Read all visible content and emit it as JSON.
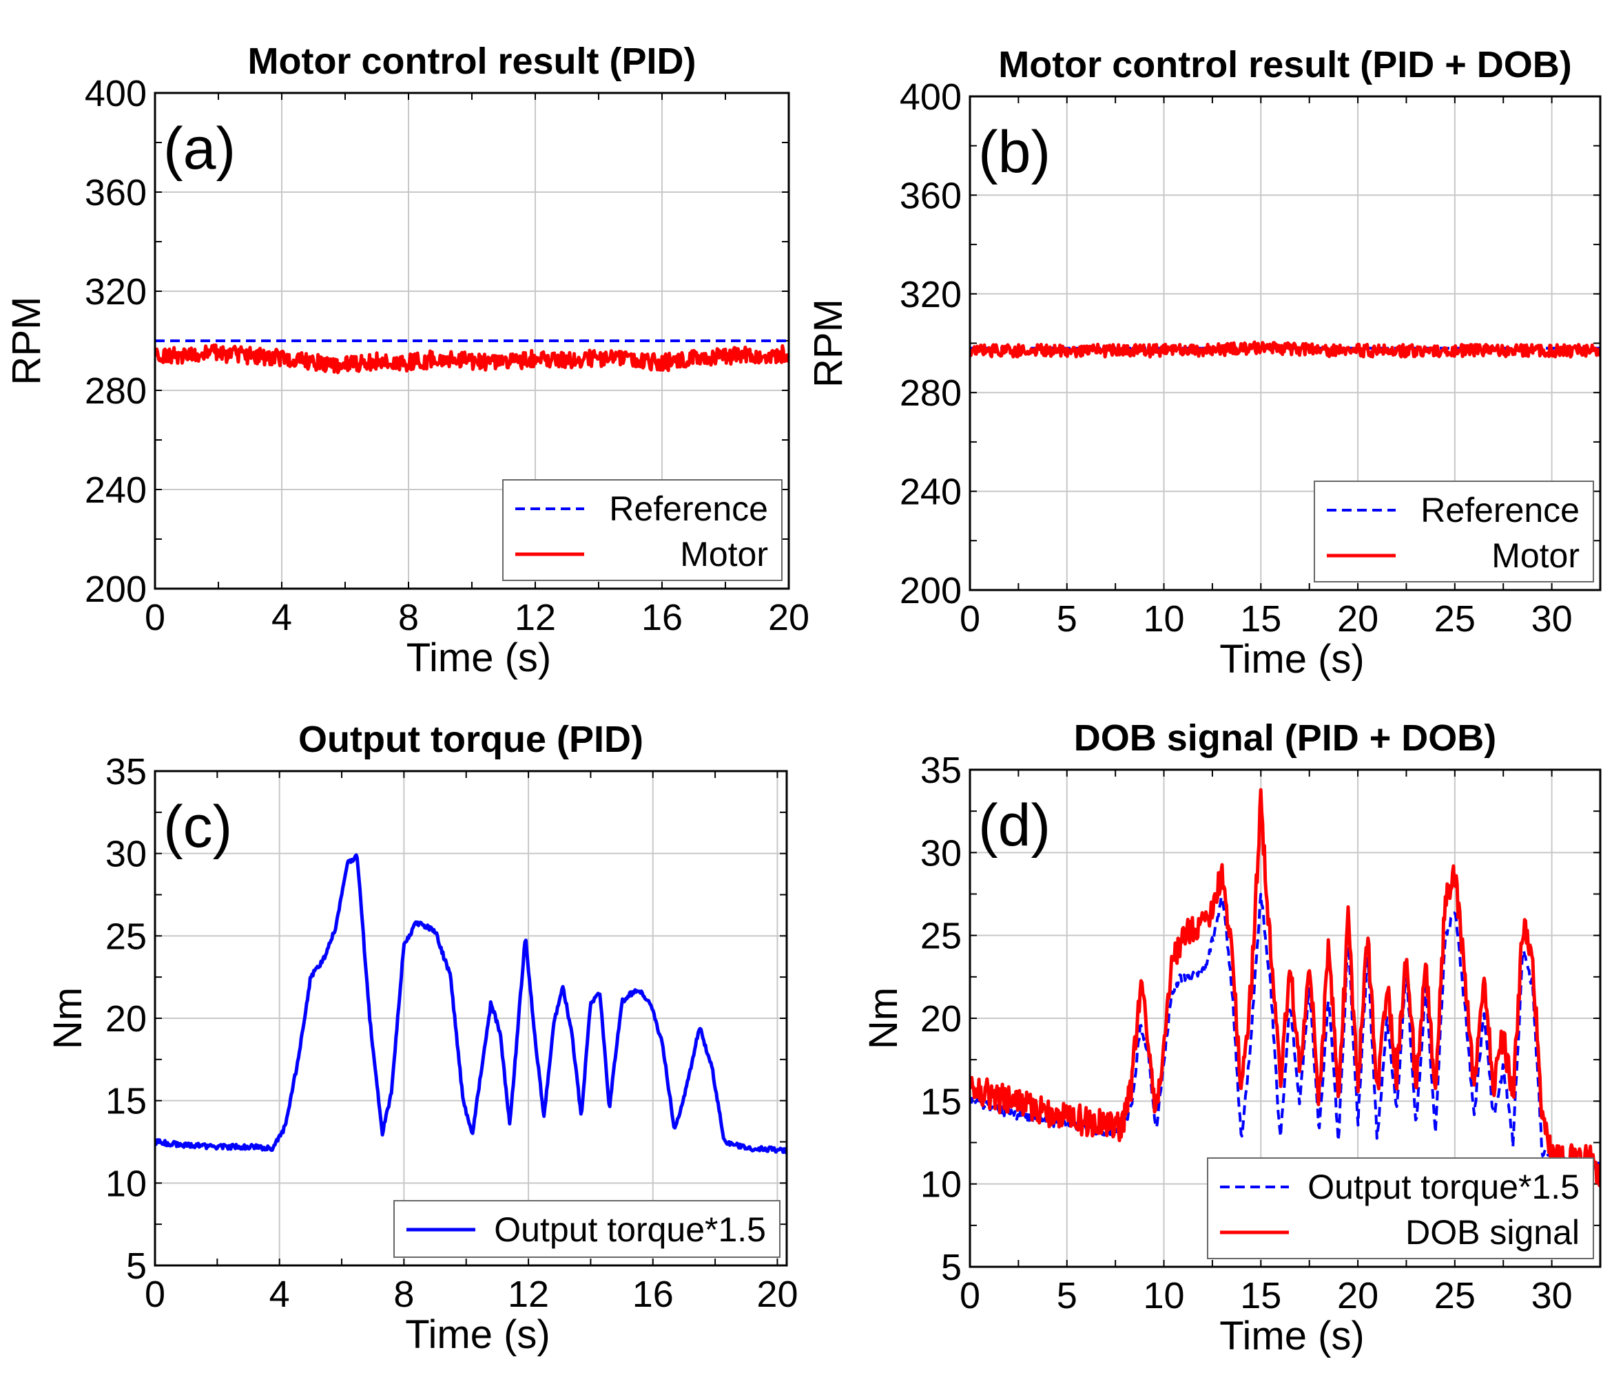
{
  "chart_data": [
    {
      "type": "line",
      "panel_label": "(a)",
      "title": "Motor control result (PID)",
      "xlabel": "Time (s)",
      "ylabel": "RPM",
      "xlim": [
        0,
        20
      ],
      "ylim": [
        200,
        400
      ],
      "xticks": [
        0,
        4,
        8,
        12,
        16,
        20
      ],
      "yticks": [
        200,
        240,
        280,
        320,
        360,
        400
      ],
      "grid": true,
      "legend": "bottom-right",
      "series": [
        {
          "name": "Reference",
          "style": "dashed",
          "color": "#0000ff",
          "x": [
            0,
            20
          ],
          "y": [
            300,
            300
          ]
        },
        {
          "name": "Motor",
          "style": "solid",
          "color": "#ff0000",
          "x": [
            0,
            1,
            2,
            3,
            4,
            5,
            6,
            7,
            8,
            9,
            10,
            11,
            12,
            13,
            14,
            15,
            16,
            17,
            18,
            19,
            20
          ],
          "y": [
            295,
            294,
            295,
            294,
            293,
            291,
            290,
            292,
            291,
            293,
            292,
            291,
            293,
            292,
            293,
            292,
            291,
            293,
            294,
            294,
            295
          ],
          "noise": 3.5
        }
      ]
    },
    {
      "type": "line",
      "panel_label": "(b)",
      "title": "Motor control result (PID + DOB)",
      "xlabel": "Time (s)",
      "ylabel": "RPM",
      "xlim": [
        0,
        32.5
      ],
      "ylim": [
        200,
        400
      ],
      "xticks": [
        0,
        5,
        10,
        15,
        20,
        25,
        30
      ],
      "yticks": [
        200,
        240,
        280,
        320,
        360,
        400
      ],
      "grid": true,
      "legend": "bottom-right",
      "series": [
        {
          "name": "Reference",
          "style": "dashed",
          "color": "#0000ff",
          "x": [
            0,
            32.5
          ],
          "y": [
            298,
            298
          ]
        },
        {
          "name": "Motor",
          "style": "solid",
          "color": "#ff0000",
          "x": [
            0,
            2,
            4,
            6,
            8,
            10,
            12,
            14,
            16,
            18,
            20,
            22,
            24,
            26,
            28,
            30,
            32.5
          ],
          "y": [
            297,
            297,
            297,
            297,
            297,
            297,
            297,
            298,
            298,
            297,
            297,
            297,
            297,
            297,
            297,
            297,
            297
          ],
          "noise": 2.5
        }
      ]
    },
    {
      "type": "line",
      "panel_label": "(c)",
      "title": "Output torque (PID)",
      "xlabel": "Time (s)",
      "ylabel": "Nm",
      "xlim": [
        0,
        20.3
      ],
      "ylim": [
        5,
        35
      ],
      "xticks": [
        0,
        4,
        8,
        12,
        16,
        20
      ],
      "yticks": [
        5,
        10,
        15,
        20,
        25,
        30,
        35
      ],
      "grid": true,
      "legend": "bottom-right",
      "series": [
        {
          "name": "Output torque*1.5",
          "style": "solid",
          "color": "#0000ff",
          "x": [
            0,
            1,
            2,
            3,
            3.8,
            4.2,
            4.6,
            5.0,
            5.4,
            5.8,
            6.2,
            6.5,
            6.9,
            7.3,
            7.6,
            8.0,
            8.4,
            9.0,
            9.5,
            9.9,
            10.2,
            10.5,
            10.8,
            11.1,
            11.4,
            11.6,
            11.9,
            12.2,
            12.5,
            12.8,
            13.1,
            13.4,
            13.7,
            14.0,
            14.3,
            14.6,
            15.0,
            15.5,
            15.9,
            16.3,
            16.7,
            17.1,
            17.5,
            17.9,
            18.3,
            19.0,
            20.3
          ],
          "y": [
            12.5,
            12.3,
            12.2,
            12.2,
            12.1,
            13.5,
            17.5,
            22.5,
            23.5,
            25.5,
            29.5,
            29.8,
            20.0,
            13.0,
            15.5,
            24.5,
            25.8,
            25.3,
            22.5,
            15.0,
            13.0,
            17.0,
            21.0,
            19.0,
            13.5,
            18.0,
            25.0,
            19.0,
            14.0,
            19.5,
            22.0,
            19.0,
            14.0,
            21.0,
            21.5,
            14.5,
            21.0,
            21.8,
            21.0,
            18.5,
            13.2,
            16.0,
            19.5,
            17.0,
            12.5,
            12.1,
            12.0
          ],
          "noise": 0.15
        }
      ]
    },
    {
      "type": "line",
      "panel_label": "(d)",
      "title": "DOB signal (PID + DOB)",
      "xlabel": "Time (s)",
      "ylabel": "Nm",
      "xlim": [
        0,
        32.5
      ],
      "ylim": [
        5,
        35
      ],
      "xticks": [
        0,
        5,
        10,
        15,
        20,
        25,
        30
      ],
      "yticks": [
        5,
        10,
        15,
        20,
        25,
        30,
        35
      ],
      "grid": true,
      "legend": "bottom-right",
      "series": [
        {
          "name": "Output torque*1.5",
          "style": "dashed",
          "color": "#0000ff",
          "x": [
            0,
            2,
            4,
            6,
            7.8,
            8.3,
            8.8,
            9.2,
            9.6,
            10.0,
            10.4,
            10.8,
            11.5,
            12.2,
            13.0,
            13.5,
            14.0,
            14.5,
            15.0,
            15.5,
            16.0,
            16.5,
            17.0,
            17.5,
            18.0,
            18.5,
            19.0,
            19.5,
            20.0,
            20.5,
            21.0,
            21.5,
            22.0,
            22.5,
            23.0,
            23.5,
            24.0,
            24.5,
            25.0,
            25.5,
            26.0,
            26.5,
            27.0,
            27.5,
            28.0,
            28.5,
            29.0,
            29.5,
            30.0,
            31.0,
            32.5
          ],
          "y": [
            15,
            14.3,
            13.8,
            13.4,
            13.0,
            14.5,
            19.5,
            18.0,
            13.0,
            17.5,
            21.5,
            22.5,
            22.5,
            23.0,
            27.5,
            22.0,
            12.5,
            19.0,
            27.5,
            22.0,
            12.5,
            21.0,
            15.0,
            22.0,
            13.0,
            21.5,
            12.5,
            25.0,
            13.5,
            24.0,
            12.5,
            20.0,
            14.5,
            23.0,
            13.5,
            22.0,
            13.0,
            25.0,
            26.5,
            21.0,
            14.0,
            20.5,
            14.0,
            17.0,
            12.5,
            24.0,
            22.0,
            12.0,
            11.5,
            11.2,
            11.0
          ],
          "noise": 0.3
        },
        {
          "name": "DOB signal",
          "style": "solid",
          "color": "#ff0000",
          "x": [
            0,
            2,
            4,
            6,
            7.8,
            8.3,
            8.8,
            9.2,
            9.6,
            10.0,
            10.4,
            10.8,
            11.5,
            12.2,
            13.0,
            13.5,
            14.0,
            14.5,
            15.0,
            15.5,
            16.0,
            16.5,
            17.0,
            17.5,
            18.0,
            18.5,
            19.0,
            19.5,
            20.0,
            20.5,
            21.0,
            21.5,
            22.0,
            22.5,
            23.0,
            23.5,
            24.0,
            24.5,
            25.0,
            25.5,
            26.0,
            26.5,
            27.0,
            27.5,
            28.0,
            28.5,
            29.0,
            29.5,
            30.0,
            31.0,
            32.0,
            32.5
          ],
          "y": [
            15.8,
            15.0,
            14.3,
            13.8,
            13.4,
            15.5,
            22.0,
            18.5,
            14.0,
            19.0,
            23.5,
            24.5,
            25.5,
            26.0,
            28.5,
            24.0,
            15.5,
            22.0,
            33.0,
            24.0,
            16.0,
            23.0,
            17.0,
            23.5,
            15.0,
            24.5,
            15.0,
            26.0,
            16.0,
            25.0,
            15.0,
            22.0,
            16.5,
            24.0,
            16.0,
            23.0,
            15.5,
            27.0,
            28.5,
            23.0,
            16.0,
            22.0,
            16.0,
            19.0,
            15.0,
            25.5,
            24.0,
            14.0,
            11.5,
            11.5,
            11.5,
            10.0
          ],
          "noise": 0.9
        }
      ]
    }
  ]
}
